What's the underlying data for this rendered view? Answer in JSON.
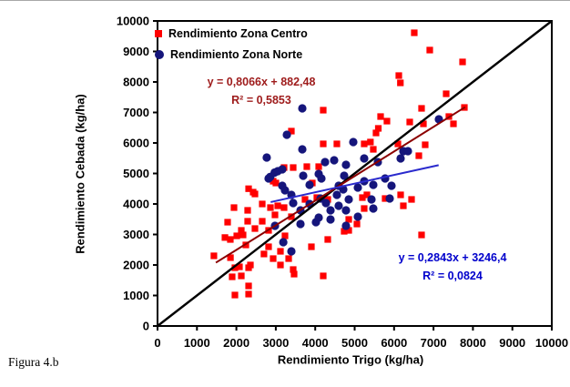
{
  "figure": {
    "caption": "Figura 4.b"
  },
  "chart_data": {
    "type": "scatter",
    "title": "",
    "xlabel": "Rendimiento Trigo (kg/ha)",
    "ylabel": "Rendimiento Cebada (kg/ha)",
    "xlim": [
      0,
      10000
    ],
    "ylim": [
      0,
      10000
    ],
    "xticks": [
      0,
      1000,
      2000,
      3000,
      4000,
      5000,
      6000,
      7000,
      8000,
      9000,
      10000
    ],
    "yticks": [
      0,
      1000,
      2000,
      3000,
      4000,
      5000,
      6000,
      7000,
      8000,
      9000,
      10000
    ],
    "grid": false,
    "legend_position": "top-left-inside",
    "colors": {
      "centro": "#FF0000",
      "norte": "#15157B",
      "centro_trend": "#8B0000",
      "norte_trend": "#2A2ACD",
      "centro_text": "#9E1B1B",
      "norte_text": "#0000CC",
      "identity": "#000000"
    },
    "series": [
      {
        "name": "Rendimiento Zona Centro",
        "marker": "square",
        "color": "#FF0000",
        "points": [
          [
            1430,
            2300
          ],
          [
            1710,
            2900
          ],
          [
            1778,
            3403
          ],
          [
            1847,
            2836
          ],
          [
            1850,
            2240
          ],
          [
            1893,
            1612
          ],
          [
            1940,
            3881
          ],
          [
            1963,
            1910
          ],
          [
            1963,
            1015
          ],
          [
            2010,
            2955
          ],
          [
            2078,
            1940
          ],
          [
            2125,
            3134
          ],
          [
            2125,
            1642
          ],
          [
            2170,
            2985
          ],
          [
            2240,
            2657
          ],
          [
            2286,
            3791
          ],
          [
            2286,
            3433
          ],
          [
            2310,
            4500
          ],
          [
            2310,
            1910
          ],
          [
            2310,
            1313
          ],
          [
            2310,
            1045
          ],
          [
            2356,
            2000
          ],
          [
            2425,
            4388
          ],
          [
            2471,
            4328
          ],
          [
            2471,
            3194
          ],
          [
            2656,
            4000
          ],
          [
            2656,
            3433
          ],
          [
            2700,
            2360
          ],
          [
            2817,
            2597
          ],
          [
            2817,
            3134
          ],
          [
            2864,
            3881
          ],
          [
            2933,
            4746
          ],
          [
            2933,
            2209
          ],
          [
            2979,
            3642
          ],
          [
            3002,
            4687
          ],
          [
            3049,
            3940
          ],
          [
            3118,
            2448
          ],
          [
            3118,
            2000
          ],
          [
            3210,
            5194
          ],
          [
            3210,
            3881
          ],
          [
            3233,
            2955
          ],
          [
            3326,
            2209
          ],
          [
            3395,
            6388
          ],
          [
            3395,
            3582
          ],
          [
            3441,
            5194
          ],
          [
            3441,
            1851
          ],
          [
            3464,
            1701
          ],
          [
            3741,
            4149
          ],
          [
            3787,
            5224
          ],
          [
            3903,
            2597
          ],
          [
            3926,
            4687
          ],
          [
            4041,
            4209
          ],
          [
            4088,
            5224
          ],
          [
            4203,
            7075
          ],
          [
            4203,
            5970
          ],
          [
            4203,
            1642
          ],
          [
            4318,
            4149
          ],
          [
            4318,
            2836
          ],
          [
            4549,
            5970
          ],
          [
            4734,
            3104
          ],
          [
            4850,
            3134
          ],
          [
            4850,
            3493
          ],
          [
            5058,
            3343
          ],
          [
            5196,
            4209
          ],
          [
            5242,
            5970
          ],
          [
            5242,
            3851
          ],
          [
            5311,
            4299
          ],
          [
            5400,
            6030
          ],
          [
            5473,
            5791
          ],
          [
            5542,
            6328
          ],
          [
            5600,
            6478
          ],
          [
            5658,
            6866
          ],
          [
            5773,
            4179
          ],
          [
            5819,
            6716
          ],
          [
            6097,
            5970
          ],
          [
            6120,
            8209
          ],
          [
            6160,
            7970
          ],
          [
            6166,
            4299
          ],
          [
            6235,
            3940
          ],
          [
            6397,
            6687
          ],
          [
            6443,
            4149
          ],
          [
            6512,
            9612
          ],
          [
            6628,
            5582
          ],
          [
            6697,
            7134
          ],
          [
            6697,
            2985
          ],
          [
            6744,
            6627
          ],
          [
            6789,
            5940
          ],
          [
            6905,
            9045
          ],
          [
            7321,
            7612
          ],
          [
            7390,
            6866
          ],
          [
            7506,
            6627
          ],
          [
            7737,
            8657
          ],
          [
            7783,
            7164
          ]
        ]
      },
      {
        "name": "Rendimiento Zona Norte",
        "marker": "circle",
        "color": "#15157B",
        "points": [
          [
            2770,
            5522
          ],
          [
            2817,
            4836
          ],
          [
            2860,
            4890
          ],
          [
            2970,
            5030
          ],
          [
            2979,
            3284
          ],
          [
            3049,
            5075
          ],
          [
            3164,
            5134
          ],
          [
            3164,
            4597
          ],
          [
            3190,
            2746
          ],
          [
            3233,
            4448
          ],
          [
            3280,
            6269
          ],
          [
            3395,
            4299
          ],
          [
            3395,
            2448
          ],
          [
            3441,
            4030
          ],
          [
            3626,
            3791
          ],
          [
            3626,
            3343
          ],
          [
            3672,
            5791
          ],
          [
            3672,
            7134
          ],
          [
            3695,
            4925
          ],
          [
            3857,
            4627
          ],
          [
            3857,
            4000
          ],
          [
            4018,
            3403
          ],
          [
            4088,
            4985
          ],
          [
            4088,
            3552
          ],
          [
            4134,
            4179
          ],
          [
            4157,
            4836
          ],
          [
            4249,
            5373
          ],
          [
            4272,
            4030
          ],
          [
            4388,
            3791
          ],
          [
            4388,
            3493
          ],
          [
            4480,
            5433
          ],
          [
            4549,
            4299
          ],
          [
            4595,
            4597
          ],
          [
            4595,
            3940
          ],
          [
            4711,
            4478
          ],
          [
            4734,
            4925
          ],
          [
            4780,
            5284
          ],
          [
            4780,
            3791
          ],
          [
            4780,
            3284
          ],
          [
            4850,
            4149
          ],
          [
            4965,
            6030
          ],
          [
            5081,
            4537
          ],
          [
            5081,
            3582
          ],
          [
            5242,
            5493
          ],
          [
            5242,
            4746
          ],
          [
            5427,
            4149
          ],
          [
            5473,
            4627
          ],
          [
            5473,
            3851
          ],
          [
            5588,
            5373
          ],
          [
            5773,
            4836
          ],
          [
            5889,
            4179
          ],
          [
            5935,
            4597
          ],
          [
            6166,
            5493
          ],
          [
            6235,
            5731
          ],
          [
            6351,
            5731
          ],
          [
            7136,
            6776
          ]
        ]
      }
    ],
    "lines": [
      {
        "name": "identity-line",
        "color": "#000000",
        "width": 2.4,
        "from": [
          0,
          0
        ],
        "to": [
          10000,
          10000
        ]
      },
      {
        "name": "trend-centro",
        "color": "#8B0000",
        "width": 2,
        "from": [
          1480,
          2076
        ],
        "to": [
          7800,
          7174
        ]
      },
      {
        "name": "trend-norte",
        "color": "#2A2ACD",
        "width": 2,
        "from": [
          2870,
          4062
        ],
        "to": [
          7130,
          5273
        ]
      }
    ],
    "annotations": [
      {
        "id": "centro",
        "color": "#9E1B1B",
        "line1": "y = 0,8066x + 882,48",
        "line2": "R² = 0,5853"
      },
      {
        "id": "norte",
        "color": "#0000CC",
        "line1": "y = 0,2843x + 3246,4",
        "line2": "R² = 0,0824"
      }
    ]
  }
}
